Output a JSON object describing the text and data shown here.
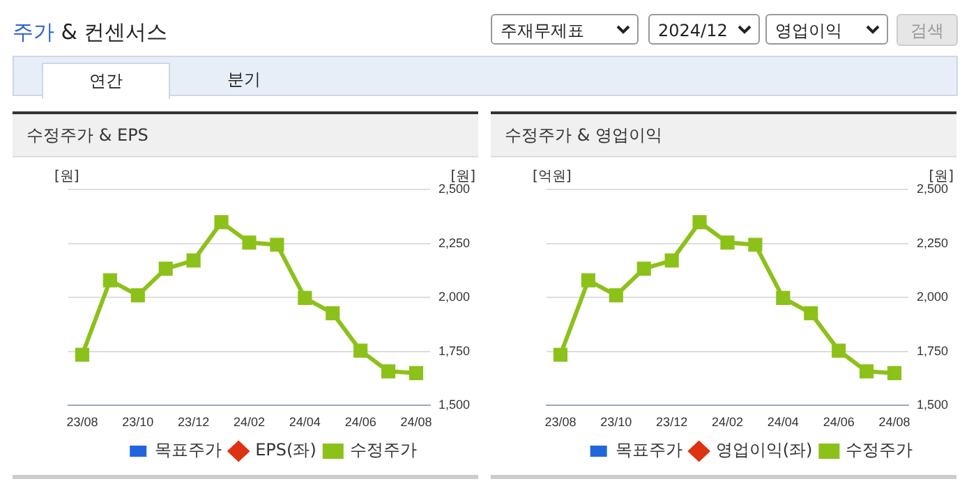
{
  "chart_data": [
    {
      "type": "line",
      "title": "수정주가 & EPS",
      "ylabel": "[원]",
      "y2label": "[원]",
      "annotations": [
        "주가 & 컨센서스",
        "주재무제표",
        "2024/12",
        "영업이익",
        "검색",
        "연간",
        "분기"
      ],
      "categories": [
        "23/08",
        null,
        "23/10",
        null,
        "23/12",
        null,
        "24/02",
        null,
        "24/04",
        null,
        "24/06",
        null,
        "24/08"
      ],
      "series": [
        {
          "name": "목표주가",
          "type": "bar",
          "color": "#2266dd",
          "values": [
            null,
            null,
            null,
            null,
            null,
            null,
            null,
            null,
            null,
            null,
            null,
            null,
            null
          ]
        },
        {
          "name": "EPS(좌)",
          "color": "#dd3311",
          "marker": "diamond",
          "values": [
            null,
            null,
            null,
            null,
            null,
            null,
            null,
            null,
            null,
            null,
            null,
            null,
            null
          ]
        },
        {
          "name": "수정주가",
          "color": "#8cc11a",
          "marker": "square",
          "axis": "y2",
          "values": [
            1735,
            2079,
            2010,
            2133,
            2171,
            2348,
            2254,
            2244,
            1998,
            1927,
            1754,
            1658,
            1650
          ]
        }
      ],
      "y2lim": [
        1500,
        2500
      ],
      "y2ticks": [
        {
          "value": 1500,
          "label": "1,500"
        },
        {
          "value": 1750,
          "label": "1,750"
        },
        {
          "value": 2000,
          "label": "2,000"
        },
        {
          "value": 2250,
          "label": "2,250"
        },
        {
          "value": 2500,
          "label": "2,500"
        }
      ],
      "grid": "y",
      "legend": "bottom"
    },
    {
      "type": "line",
      "title": "수정주가 & 영업이익",
      "ylabel": "[억원]",
      "y2label": "[원]",
      "categories": [
        "23/08",
        null,
        "23/10",
        null,
        "23/12",
        null,
        "24/02",
        null,
        "24/04",
        null,
        "24/06",
        null,
        "24/08"
      ],
      "series": [
        {
          "name": "목표주가",
          "type": "bar",
          "color": "#2266dd",
          "values": [
            null,
            null,
            null,
            null,
            null,
            null,
            null,
            null,
            null,
            null,
            null,
            null,
            null
          ]
        },
        {
          "name": "영업이익(좌)",
          "color": "#dd3311",
          "marker": "diamond",
          "values": [
            null,
            null,
            null,
            null,
            null,
            null,
            null,
            null,
            null,
            null,
            null,
            null,
            null
          ]
        },
        {
          "name": "수정주가",
          "color": "#8cc11a",
          "marker": "square",
          "axis": "y2",
          "values": [
            1735,
            2079,
            2010,
            2133,
            2171,
            2348,
            2254,
            2244,
            1998,
            1927,
            1754,
            1658,
            1650
          ]
        }
      ],
      "y2lim": [
        1500,
        2500
      ],
      "y2ticks": [
        {
          "value": 1500,
          "label": "1,500"
        },
        {
          "value": 1750,
          "label": "1,750"
        },
        {
          "value": 2000,
          "label": "2,000"
        },
        {
          "value": 2250,
          "label": "2,250"
        },
        {
          "value": 2500,
          "label": "2,500"
        }
      ],
      "grid": "y",
      "legend": "bottom"
    }
  ]
}
